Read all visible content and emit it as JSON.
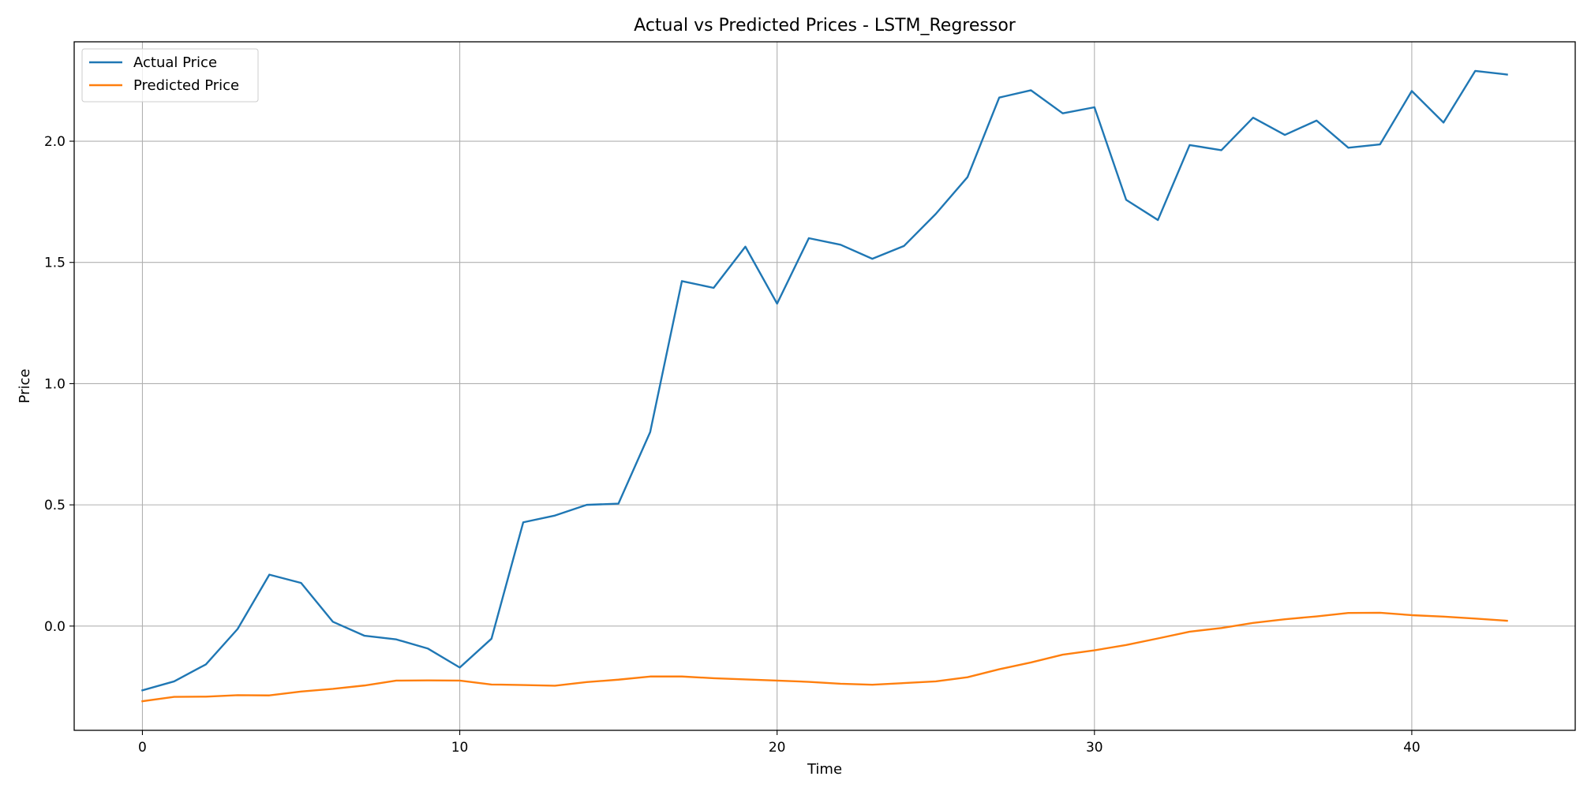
{
  "chart_data": {
    "type": "line",
    "title": "Actual vs Predicted Prices - LSTM_Regressor",
    "xlabel": "Time",
    "ylabel": "Price",
    "xlim": [
      -2.15,
      45.15
    ],
    "ylim": [
      -0.43,
      2.41
    ],
    "xticks": [
      0,
      10,
      20,
      30,
      40
    ],
    "yticks": [
      0.0,
      0.5,
      1.0,
      1.5,
      2.0
    ],
    "xtick_labels": [
      "0",
      "10",
      "20",
      "30",
      "40"
    ],
    "ytick_labels": [
      "0.0",
      "0.5",
      "1.0",
      "1.5",
      "2.0"
    ],
    "grid": true,
    "legend_position": "top-left",
    "x": [
      0,
      1,
      2,
      3,
      4,
      5,
      6,
      7,
      8,
      9,
      10,
      11,
      12,
      13,
      14,
      15,
      16,
      17,
      18,
      19,
      20,
      21,
      22,
      23,
      24,
      25,
      26,
      27,
      28,
      29,
      30,
      31,
      32,
      33,
      34,
      35,
      36,
      37,
      38,
      39,
      40,
      41,
      42,
      43
    ],
    "series": [
      {
        "name": "Actual Price",
        "color": "#1f77b4",
        "values": [
          -0.265,
          -0.228,
          -0.158,
          -0.012,
          0.212,
          0.178,
          0.018,
          -0.04,
          -0.055,
          -0.093,
          -0.171,
          -0.052,
          0.428,
          0.456,
          0.5,
          0.505,
          0.8,
          1.423,
          1.395,
          1.565,
          1.33,
          1.6,
          1.573,
          1.515,
          1.568,
          1.7,
          1.852,
          2.18,
          2.21,
          2.115,
          2.14,
          1.758,
          1.675,
          1.984,
          1.963,
          2.097,
          2.026,
          2.085,
          1.973,
          1.987,
          2.207,
          2.077,
          2.29,
          2.275
        ]
      },
      {
        "name": "Predicted Price",
        "color": "#ff7f0e",
        "values": [
          -0.31,
          -0.292,
          -0.291,
          -0.285,
          -0.286,
          -0.27,
          -0.259,
          -0.245,
          -0.225,
          -0.224,
          -0.225,
          -0.241,
          -0.243,
          -0.246,
          -0.231,
          -0.221,
          -0.208,
          -0.208,
          -0.215,
          -0.22,
          -0.225,
          -0.23,
          -0.238,
          -0.242,
          -0.235,
          -0.228,
          -0.211,
          -0.178,
          -0.15,
          -0.118,
          -0.1,
          -0.078,
          -0.051,
          -0.023,
          -0.008,
          0.013,
          0.028,
          0.04,
          0.054,
          0.055,
          0.045,
          0.039,
          0.031,
          0.022
        ]
      }
    ]
  }
}
